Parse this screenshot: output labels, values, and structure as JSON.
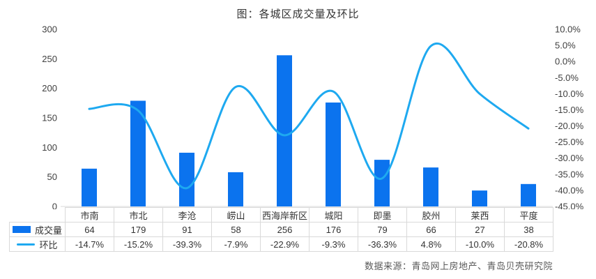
{
  "title": "图：各城区成交量及环比",
  "source_note": "数据来源：青岛网上房地产、青岛贝壳研究院",
  "colors": {
    "bar": "#0b73ee",
    "line": "#1ea9f0",
    "border": "#d9d9d9",
    "axis_text": "#404040",
    "table_text": "#333333",
    "source_text": "#595959",
    "title_text": "#333333"
  },
  "chart_data": {
    "type": "combo bar+line",
    "title": "图：各城区成交量及环比",
    "categories": [
      "市南",
      "市北",
      "李沧",
      "崂山",
      "西海岸新区",
      "城阳",
      "即墨",
      "胶州",
      "莱西",
      "平度"
    ],
    "series": [
      {
        "name": "成交量",
        "type": "bar",
        "axis": "left",
        "values": [
          64,
          179,
          91,
          58,
          256,
          176,
          79,
          66,
          27,
          38
        ]
      },
      {
        "name": "环比",
        "type": "line",
        "axis": "right",
        "smooth": true,
        "values_pct": [
          -14.7,
          -15.2,
          -39.3,
          -7.9,
          -22.9,
          -9.3,
          -36.3,
          4.8,
          -10.0,
          -20.8
        ],
        "display": [
          "-14.7%",
          "-15.2%",
          "-39.3%",
          "-7.9%",
          "-22.9%",
          "-9.3%",
          "-36.3%",
          "4.8%",
          "-10.0%",
          "-20.8%"
        ]
      }
    ],
    "left_axis": {
      "min": 0,
      "max": 300,
      "step": 50,
      "ticks": [
        "300",
        "250",
        "200",
        "150",
        "100",
        "50",
        "0"
      ]
    },
    "right_axis": {
      "min": -45,
      "max": 10,
      "step": 5,
      "ticks": [
        "10.0%",
        "5.0%",
        "0.0%",
        "-5.0%",
        "-10.0%",
        "-15.0%",
        "-20.0%",
        "-25.0%",
        "-30.0%",
        "-35.0%",
        "-40.0%",
        "-45.0%"
      ]
    },
    "grid": false,
    "legend_position": "table-left"
  }
}
